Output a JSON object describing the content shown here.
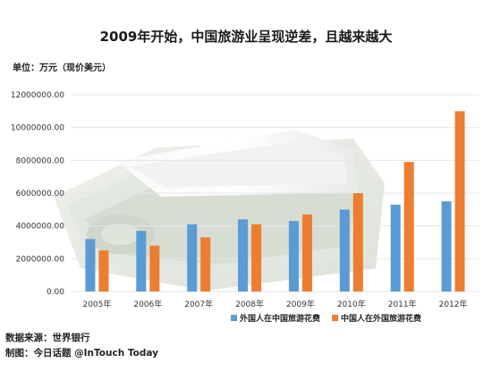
{
  "title": "2009年开始，中国旅游业呈现逆差，且越来越大",
  "unit_label": "单位：万元（现价美元）",
  "footer": {
    "source": "数据来源：世界银行",
    "maker": "制图：今日话题 @InTouch Today"
  },
  "colors": {
    "series_blue": "#5b9bd5",
    "series_orange": "#ed7d31",
    "grid": "#e6e6e6"
  },
  "chart_data": {
    "type": "bar",
    "title": "2009年开始，中国旅游业呈现逆差，且越来越大",
    "ylabel": "单位：万元（现价美元）",
    "ylim": [
      0,
      12000000
    ],
    "yticks": [
      0,
      2000000,
      4000000,
      6000000,
      8000000,
      10000000,
      12000000
    ],
    "ytick_labels": [
      "0.00",
      "2000000.00",
      "4000000.00",
      "6000000.00",
      "8000000.00",
      "10000000.00",
      "12000000.00"
    ],
    "grid": true,
    "legend_position": "bottom",
    "categories": [
      "2005年",
      "2006年",
      "2007年",
      "2008年",
      "2009年",
      "2010年",
      "2011年",
      "2012年"
    ],
    "series": [
      {
        "name": "外国人在中国旅游花费",
        "color": "#5b9bd5",
        "values": [
          3200000,
          3700000,
          4100000,
          4400000,
          4300000,
          5000000,
          5300000,
          5500000
        ]
      },
      {
        "name": "中国人在外国旅游花费",
        "color": "#ed7d31",
        "values": [
          2500000,
          2800000,
          3300000,
          4100000,
          4700000,
          6000000,
          7900000,
          11000000
        ]
      }
    ]
  }
}
